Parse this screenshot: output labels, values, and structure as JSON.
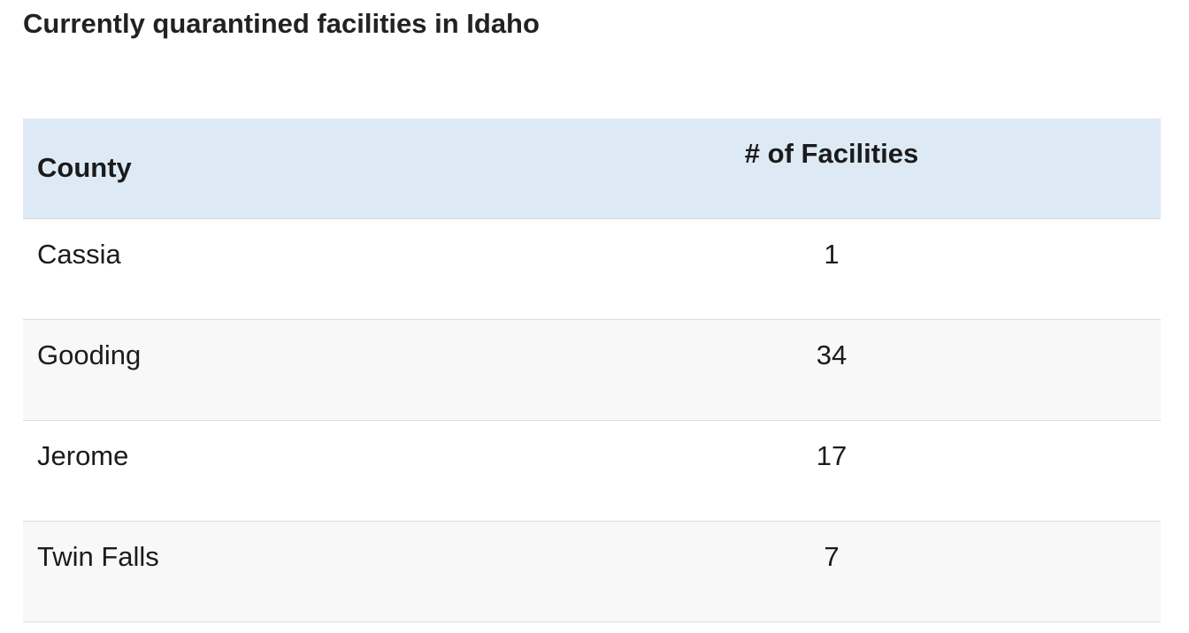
{
  "title": "Currently quarantined facilities in Idaho",
  "table": {
    "header": [
      "County",
      "# of Facilities"
    ],
    "rows": [
      [
        "Cassia",
        1
      ],
      [
        "Gooding",
        34
      ],
      [
        "Jerome",
        17
      ],
      [
        "Twin Falls",
        7
      ]
    ]
  }
}
